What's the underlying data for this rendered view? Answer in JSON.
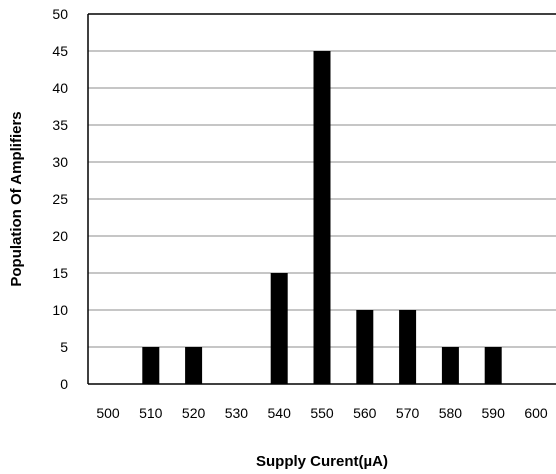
{
  "chart_data": {
    "type": "bar",
    "x_ticks": [
      "500",
      "510",
      "520",
      "530",
      "540",
      "550",
      "560",
      "570",
      "580",
      "590",
      "600"
    ],
    "x": [
      510,
      520,
      540,
      550,
      560,
      570,
      580,
      590
    ],
    "values": [
      5,
      5,
      15,
      45,
      10,
      10,
      5,
      5
    ],
    "xlim": [
      500,
      600
    ],
    "ylim": [
      0,
      50
    ],
    "y_ticks": [
      "0",
      "5",
      "10",
      "15",
      "20",
      "25",
      "30",
      "35",
      "40",
      "45",
      "50"
    ],
    "xlabel": "Supply Curent(µA)",
    "ylabel": "Population Of Amplifiers",
    "grid": "horizontal",
    "bar_color": "#000000",
    "grid_color": "#8c8c8c"
  }
}
